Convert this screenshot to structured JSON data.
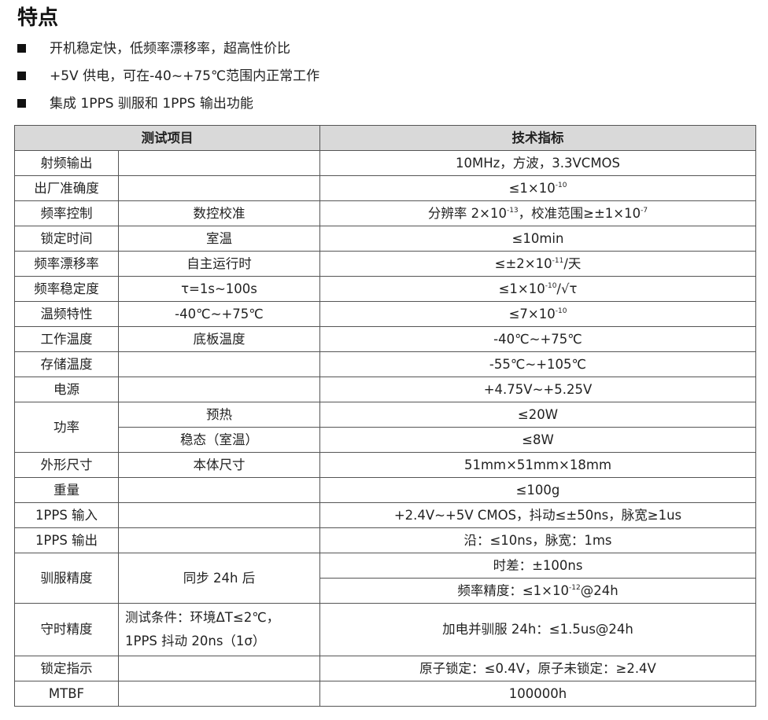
{
  "title": "特点",
  "features": [
    "开机稳定快，低频率漂移率，超高性价比",
    "+5V 供电，可在-40~+75℃范围内正常工作",
    "集成 1PPS 驯服和 1PPS 输出功能"
  ],
  "table": {
    "headers": [
      "测试项目",
      "技术指标"
    ],
    "rows": [
      {
        "item": "射频输出",
        "cond": "",
        "spec": [
          [
            "10MHz，方波，3.3VCMOS"
          ]
        ]
      },
      {
        "item": "出厂准确度",
        "cond": "",
        "spec": [
          [
            "≤1×10",
            {
              "sup": "-10"
            }
          ]
        ]
      },
      {
        "item": "频率控制",
        "cond": "数控校准",
        "spec": [
          [
            "分辨率 2×10",
            {
              "sup": "-13"
            },
            "，校准范围≥±1×10",
            {
              "sup": "-7"
            }
          ]
        ]
      },
      {
        "item": "锁定时间",
        "cond": "室温",
        "spec": [
          [
            "≤10min"
          ]
        ]
      },
      {
        "item": "频率漂移率",
        "cond": "自主运行时",
        "spec": [
          [
            "≤±2×10",
            {
              "sup": "-11"
            },
            "/天"
          ]
        ]
      },
      {
        "item": "频率稳定度",
        "cond": "τ=1s~100s",
        "spec": [
          [
            "≤1×10",
            {
              "sup": "-10"
            },
            "/√τ"
          ]
        ]
      },
      {
        "item": "温频特性",
        "cond": "-40℃~+75℃",
        "spec": [
          [
            "≤7×10",
            {
              "sup": "-10"
            }
          ]
        ]
      },
      {
        "item": "工作温度",
        "cond": "底板温度",
        "spec": [
          [
            "-40℃~+75℃"
          ]
        ]
      },
      {
        "item": "存储温度",
        "cond": "",
        "spec": [
          [
            "-55℃~+105℃"
          ]
        ]
      },
      {
        "item": "电源",
        "cond": "",
        "spec": [
          [
            "+4.75V~+5.25V"
          ]
        ]
      },
      {
        "item": "功率",
        "sub": [
          {
            "cond": "预热",
            "spec": [
              "≤20W"
            ]
          },
          {
            "cond": "稳态（室温）",
            "spec": [
              "≤8W"
            ]
          }
        ]
      },
      {
        "item": "外形尺寸",
        "cond": "本体尺寸",
        "spec": [
          [
            "51mm×51mm×18mm"
          ]
        ]
      },
      {
        "item": "重量",
        "cond": "",
        "spec": [
          [
            "≤100g"
          ]
        ]
      },
      {
        "item": "1PPS 输入",
        "cond": "",
        "spec": [
          [
            "+2.4V~+5V CMOS，抖动≤±50ns，脉宽≥1us"
          ]
        ]
      },
      {
        "item": "1PPS 输出",
        "cond": "",
        "spec": [
          [
            "沿：≤10ns，脉宽：1ms"
          ]
        ]
      },
      {
        "item": "驯服精度",
        "cond": "同步 24h 后",
        "spec": [
          [
            "时差：±100ns"
          ],
          [
            "频率精度：≤1×10",
            {
              "sup": "-12"
            },
            "@24h"
          ]
        ]
      },
      {
        "item": "守时精度",
        "cond": "测试条件：环境ΔT≤2℃，\n1PPS 抖动 20ns（1σ）",
        "spec": [
          [
            "加电并驯服 24h：≤1.5us@24h"
          ]
        ],
        "tall": true
      },
      {
        "item": "锁定指示",
        "cond": "",
        "spec": [
          [
            "原子锁定：≤0.4V，原子未锁定：≥2.4V"
          ]
        ]
      },
      {
        "item": "MTBF",
        "cond": "",
        "spec": [
          [
            "100000h"
          ]
        ]
      }
    ]
  }
}
